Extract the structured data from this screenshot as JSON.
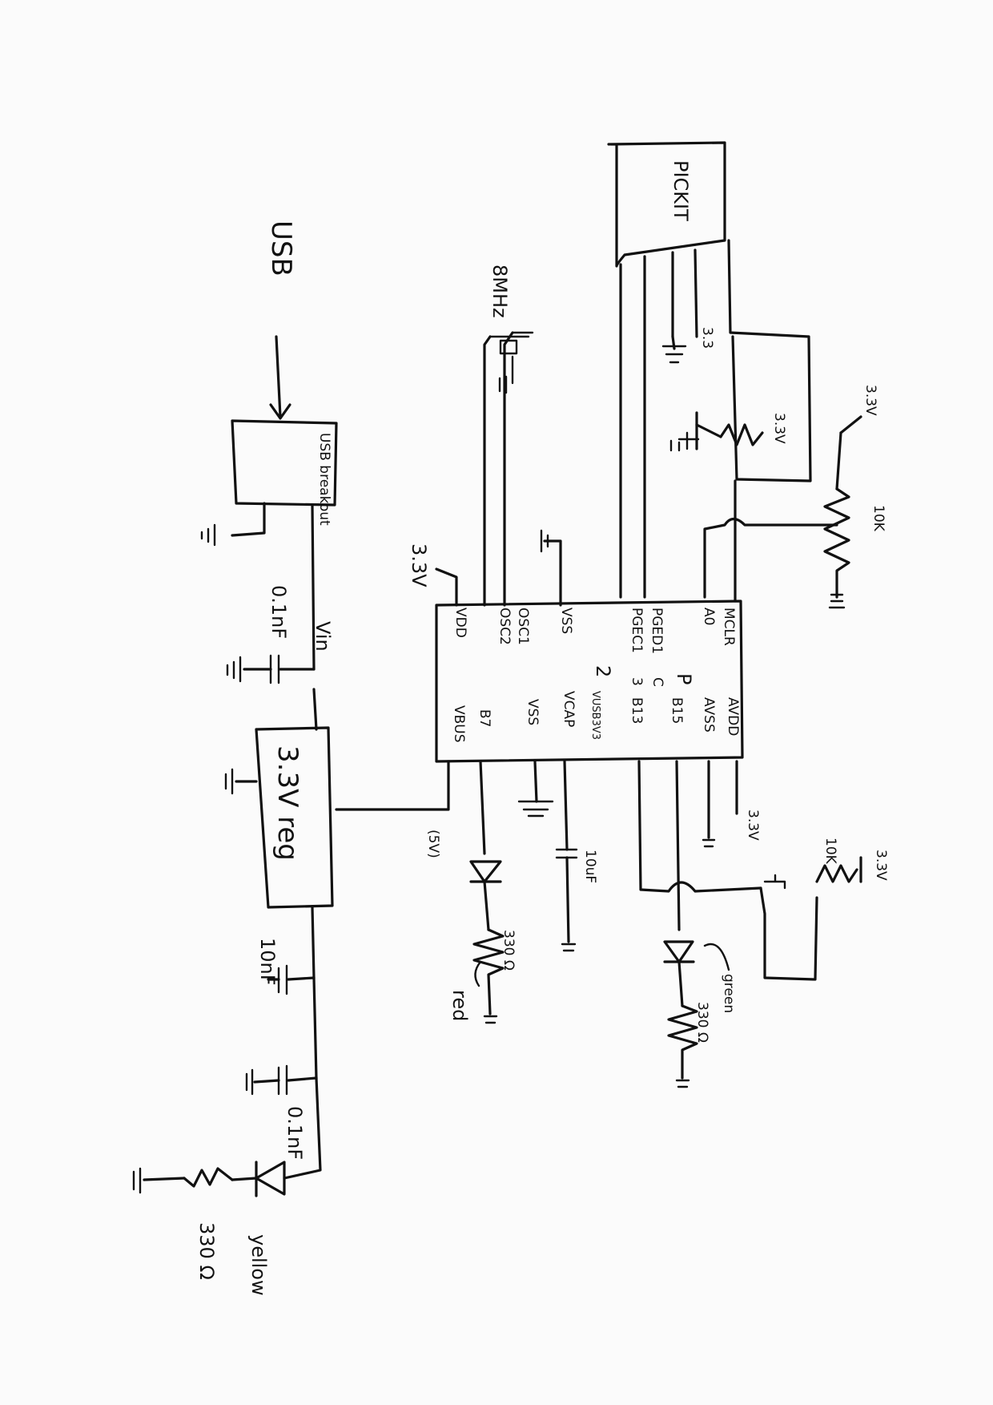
{
  "title": "",
  "blocks": {
    "pickit": "PICKIT",
    "usb_connector": "USB",
    "usb_header": "USB breakout",
    "regulator": "3.3V reg"
  },
  "mcu_pins": {
    "left_col": [
      "MCLR",
      "A0",
      "PGED1",
      "PGEC1",
      "VSS",
      "OSC1",
      "OSC2",
      "VDD"
    ],
    "right_col": [
      "AVDD",
      "AVSS",
      "B15",
      "B13",
      "VUSB3V3",
      "VCAP",
      "VSS",
      "B7",
      "VBUS"
    ],
    "pin_notes": [
      "P",
      "C",
      "3",
      "2"
    ]
  },
  "labels": {
    "v33": "3.3V",
    "v33_short": "3.3",
    "crystal": "8MHz",
    "cap_01nf": "0.1nF",
    "cap_10uf": "10uF",
    "cap_10nf_out": "10nF",
    "res_10k": "10K",
    "res_330": "330 Ω",
    "vin": "Vin",
    "bus_5v": "(5V)"
  },
  "leds": {
    "red": "red",
    "green": "green",
    "yellow": "yellow"
  }
}
